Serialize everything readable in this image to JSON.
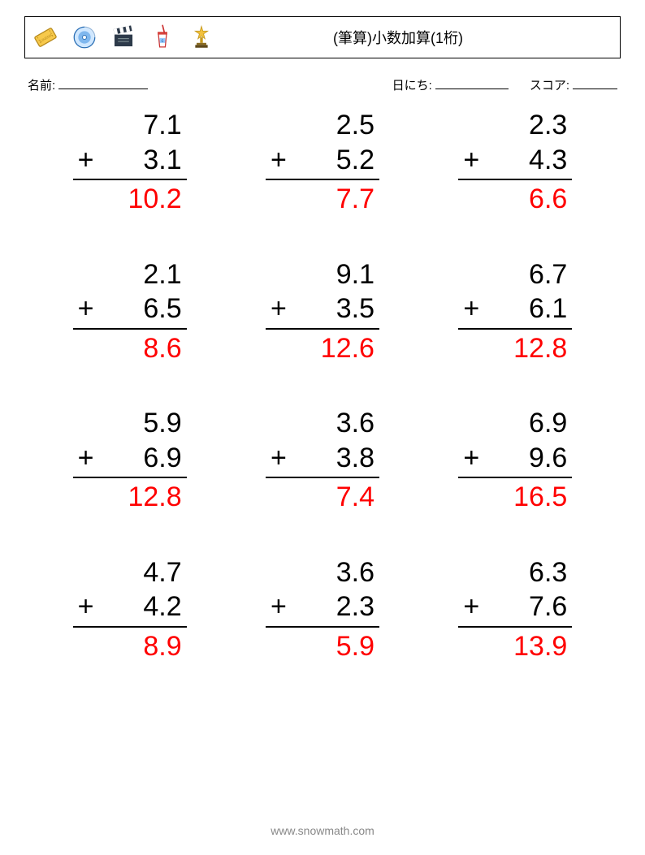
{
  "header": {
    "title": "(筆算)小数加算(1桁)",
    "icons": [
      "ticket",
      "cd",
      "clapper",
      "cup",
      "trophy"
    ]
  },
  "info": {
    "name_label": "名前:",
    "date_label": "日にち:",
    "score_label": "スコア:"
  },
  "style": {
    "page_bg": "#ffffff",
    "text_color": "#000000",
    "answer_color": "#ff0000",
    "border_color": "#000000",
    "font_size_problem": 34,
    "font_size_title": 18,
    "font_size_info": 15,
    "font_size_footer": 14,
    "footer_color": "#888888",
    "grid_cols": 3,
    "grid_rows": 4,
    "operator": "+"
  },
  "problems": [
    {
      "a": "7.1",
      "b": "3.1",
      "ans": "10.2"
    },
    {
      "a": "2.5",
      "b": "5.2",
      "ans": "7.7"
    },
    {
      "a": "2.3",
      "b": "4.3",
      "ans": "6.6"
    },
    {
      "a": "2.1",
      "b": "6.5",
      "ans": "8.6"
    },
    {
      "a": "9.1",
      "b": "3.5",
      "ans": "12.6"
    },
    {
      "a": "6.7",
      "b": "6.1",
      "ans": "12.8"
    },
    {
      "a": "5.9",
      "b": "6.9",
      "ans": "12.8"
    },
    {
      "a": "3.6",
      "b": "3.8",
      "ans": "7.4"
    },
    {
      "a": "6.9",
      "b": "9.6",
      "ans": "16.5"
    },
    {
      "a": "4.7",
      "b": "4.2",
      "ans": "8.9"
    },
    {
      "a": "3.6",
      "b": "2.3",
      "ans": "5.9"
    },
    {
      "a": "6.3",
      "b": "7.6",
      "ans": "13.9"
    }
  ],
  "footer": {
    "text": "www.snowmath.com"
  }
}
